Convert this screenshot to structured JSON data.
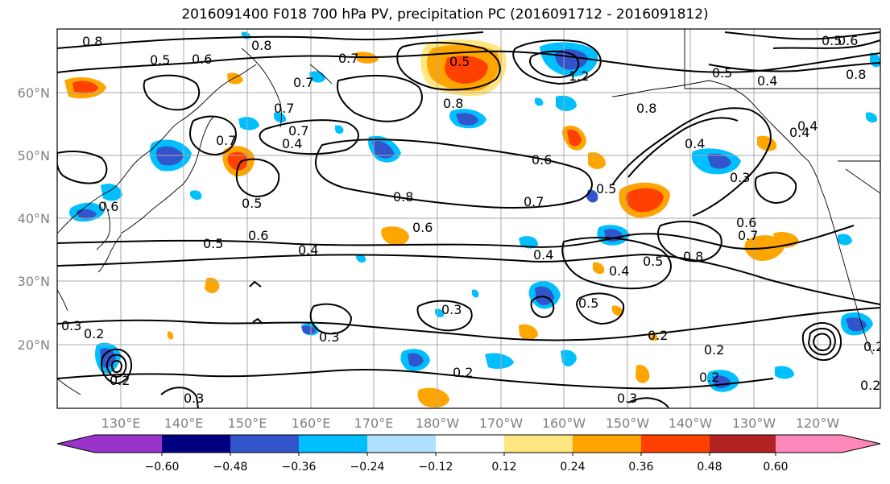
{
  "title": "2016091400 F018 700 hPa PV, precipitation PC (2016091712 - 2016091812)",
  "lat_labels": [
    "60°N",
    "50°N",
    "40°N",
    "30°N",
    "20°N"
  ],
  "lon_labels": [
    "130°E",
    "140°E",
    "150°E",
    "160°E",
    "170°E",
    "180°W",
    "170°W",
    "160°W",
    "150°W",
    "140°W",
    "130°W",
    "120°W"
  ],
  "colorbar": {
    "colors": [
      "#9933cc",
      "#000080",
      "#3355cc",
      "#00bfff",
      "#b0e0ff",
      "#ffffff",
      "#ffe680",
      "#ffa500",
      "#ff4000",
      "#b22222",
      "#ff88bb"
    ],
    "tick_labels": [
      "−0.60",
      "−0.48",
      "−0.36",
      "−0.24",
      "−0.12",
      "0.12",
      "0.24",
      "0.36",
      "0.48",
      "0.60"
    ]
  },
  "contour_labels": [
    "0.8",
    "0.6",
    "0.5",
    "0.7",
    "0.8",
    "0.7",
    "0.6",
    "0.5",
    "0.7",
    "0.4",
    "0.5",
    "0.8",
    "0.6",
    "0.7",
    "0.8",
    "1.2",
    "0.5",
    "0.4",
    "0.4",
    "0.8",
    "0.5",
    "0.5",
    "0.4",
    "0.7",
    "0.6",
    "0.6",
    "0.8",
    "0.5",
    "0.5",
    "0.6",
    "0.7",
    "0.6",
    "0.7",
    "0.8",
    "0.4",
    "0.4",
    "0.4",
    "0.3",
    "0.3",
    "0.5",
    "0.3",
    "0.2",
    "0.2",
    "0.2",
    "0.2",
    "0.3",
    "0.3",
    "0.2",
    "0.3",
    "0.2",
    "0.4",
    "0.2",
    "0.2"
  ]
}
